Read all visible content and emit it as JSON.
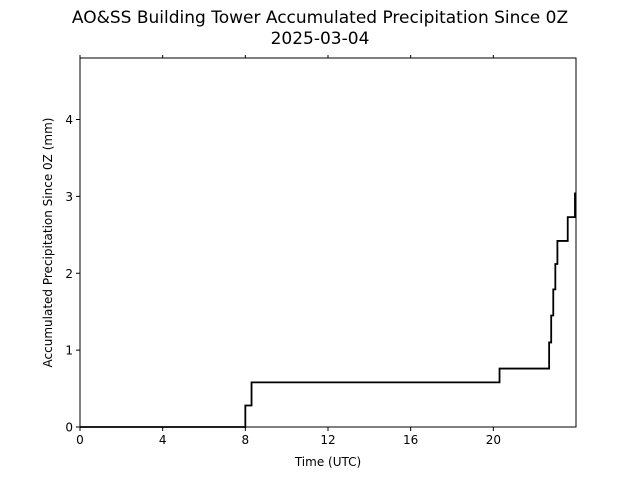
{
  "chart_data": {
    "type": "line",
    "title": "AO&SS Building Tower Accumulated Precipitation Since 0Z",
    "subtitle": "2025-03-04",
    "xlabel": "Time (UTC)",
    "ylabel": "Accumulated Precipitation Since 0Z (mm)",
    "xlim": [
      0,
      24
    ],
    "ylim": [
      0,
      4.8
    ],
    "xticks": [
      0,
      4,
      8,
      12,
      16,
      20
    ],
    "xtick_labels": [
      "0",
      "4",
      "8",
      "12",
      "16",
      "20"
    ],
    "yticks": [
      0,
      1,
      2,
      3,
      4
    ],
    "ytick_labels": [
      "0",
      "1",
      "2",
      "3",
      "4"
    ],
    "grid": false,
    "line_color": "#000000",
    "series": [
      {
        "style": "step",
        "x": [
          0,
          8.0,
          8.0,
          8.1,
          8.1,
          8.3,
          8.3,
          20.3,
          20.3,
          22.7,
          22.7,
          22.8,
          22.8,
          22.9,
          22.9,
          23.0,
          23.0,
          23.1,
          23.1,
          23.3,
          23.3,
          23.6,
          23.6,
          23.95,
          23.95
        ],
        "y": [
          0,
          0,
          0.28,
          0.28,
          0.28,
          0.28,
          0.58,
          0.58,
          0.76,
          0.76,
          1.1,
          1.1,
          1.45,
          1.45,
          1.79,
          1.79,
          2.12,
          2.12,
          2.42,
          2.42,
          2.42,
          2.42,
          2.73,
          2.73,
          3.05
        ]
      }
    ]
  }
}
